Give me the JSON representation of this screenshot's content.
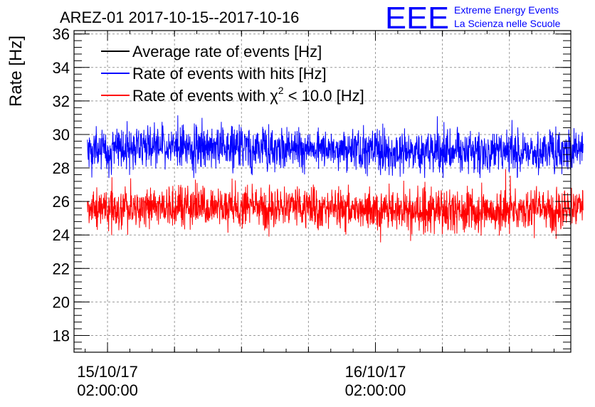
{
  "chart_data": {
    "type": "line",
    "title": "AREZ-01 2017-10-15--2017-10-16",
    "ylabel": "Rate [Hz]",
    "xlabel": "",
    "ylim": [
      17,
      36.2
    ],
    "yticks": [
      18,
      20,
      22,
      24,
      26,
      28,
      30,
      32,
      34,
      36
    ],
    "xlim_hours": [
      -3.0,
      41.5
    ],
    "xtick_hours": [
      0,
      24
    ],
    "xtick_labels": [
      {
        "date": "15/10/17",
        "time": "02:00:00"
      },
      {
        "date": "16/10/17",
        "time": "02:00:00"
      }
    ],
    "grid": true,
    "legend_position": "top-left",
    "series": [
      {
        "name": "Average rate of events [Hz]",
        "color": "#000000",
        "values": []
      },
      {
        "name": "Rate of events with hits [Hz]",
        "color": "#0000ff",
        "x_hours_range": [
          -1.8,
          42.6
        ],
        "mean": 29.1,
        "min": 27.4,
        "max": 31.7
      },
      {
        "name_prefix": "Rate of events with ",
        "name_symbol": "χ",
        "name_sup": "2",
        "name_suffix": " < 10.0 [Hz]",
        "color": "#ff0000",
        "x_hours_range": [
          -1.8,
          42.6
        ],
        "mean": 25.6,
        "min": 23.5,
        "max": 28.4
      }
    ]
  },
  "logo": {
    "text": "EEE",
    "line1": "Extreme Energy Events",
    "line2": "La Scienza nelle Scuole",
    "color": "#0000ff"
  }
}
